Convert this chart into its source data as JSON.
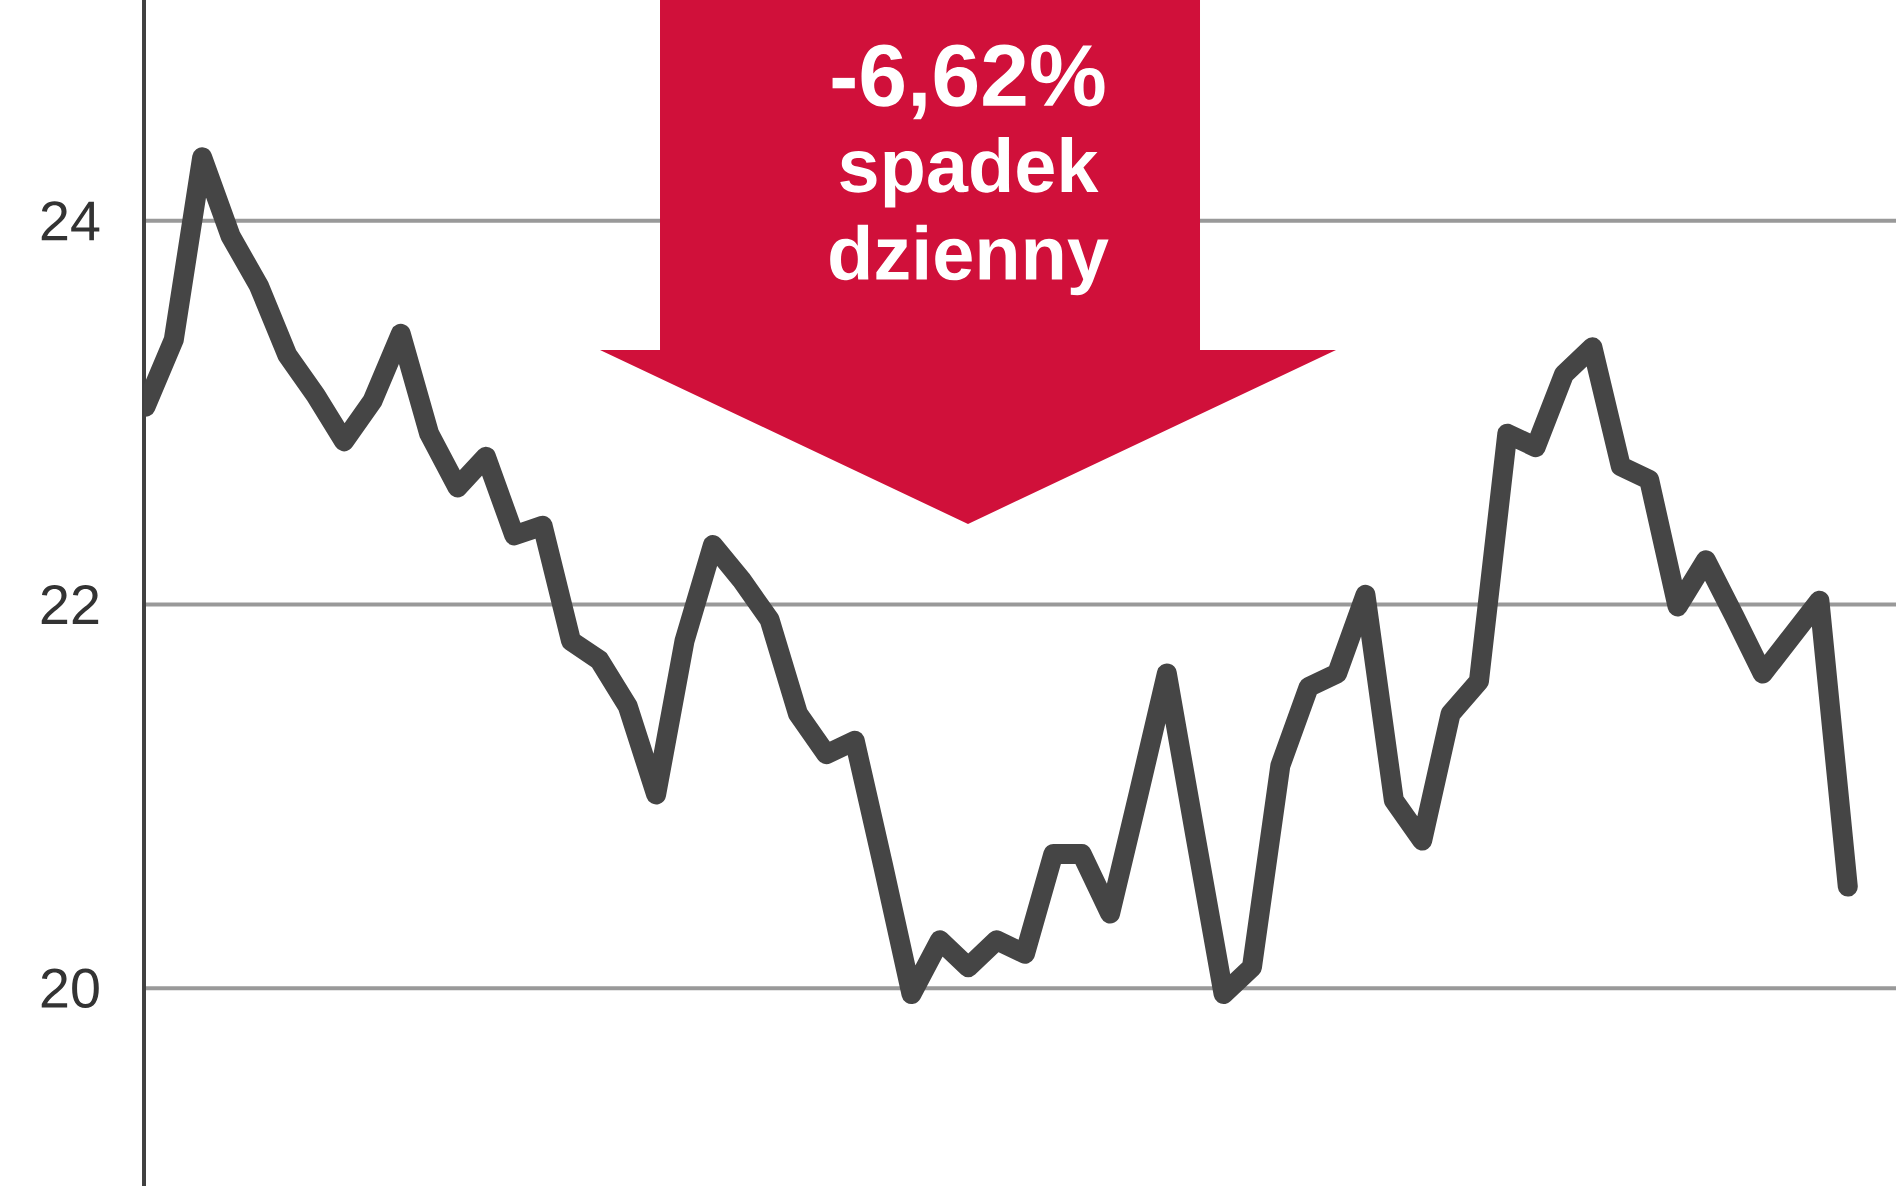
{
  "chart_data": {
    "type": "line",
    "categories": [
      null,
      null,
      null,
      null,
      null,
      null,
      null,
      null,
      null,
      null,
      null,
      null,
      null,
      null,
      null,
      null,
      null,
      null,
      null,
      null,
      null,
      null,
      null,
      null,
      null,
      null,
      null,
      null,
      null,
      null,
      null,
      null,
      null,
      null,
      null,
      null,
      null,
      null,
      null,
      null,
      null,
      null,
      null,
      null,
      null,
      null,
      null,
      null,
      null,
      null,
      null,
      null,
      null,
      null,
      null,
      null,
      null,
      null,
      null,
      null,
      null
    ],
    "values": [
      23.03,
      23.38,
      24.33,
      23.92,
      23.66,
      23.3,
      23.09,
      22.85,
      23.06,
      23.41,
      22.89,
      22.61,
      22.77,
      22.36,
      22.41,
      21.81,
      21.71,
      21.47,
      21.01,
      21.81,
      22.31,
      22.13,
      21.92,
      21.43,
      21.22,
      21.29,
      20.64,
      19.97,
      20.25,
      20.11,
      20.25,
      20.18,
      20.7,
      20.7,
      20.39,
      21.01,
      21.64,
      20.8,
      19.97,
      20.11,
      21.16,
      21.57,
      21.64,
      22.05,
      20.98,
      20.77,
      21.43,
      21.6,
      22.89,
      22.82,
      23.2,
      23.34,
      22.72,
      22.65,
      21.99,
      22.23,
      21.94,
      21.64,
      21.83,
      22.02,
      20.53
    ],
    "color": "#454545",
    "ylim": [
      18.97,
      25.15
    ],
    "yticks": [
      20,
      22,
      24
    ],
    "grid": "y",
    "annotations": [
      "-6,62%",
      "spadek dzienny"
    ]
  }
}
